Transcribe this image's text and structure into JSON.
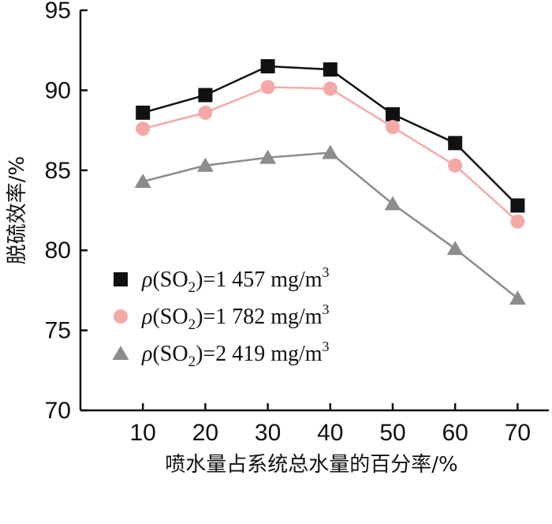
{
  "chart_data": {
    "type": "line",
    "xlabel": "喷水量占系统总水量的百分率/%",
    "ylabel": "脱硫效率/%",
    "x": [
      10,
      20,
      30,
      40,
      50,
      60,
      70
    ],
    "xlim": [
      0,
      75
    ],
    "ylim": [
      70,
      95
    ],
    "x_ticks": [
      "10",
      "20",
      "30",
      "40",
      "50",
      "60",
      "70"
    ],
    "y_ticks": [
      "70",
      "75",
      "80",
      "85",
      "90",
      "95"
    ],
    "grid": false,
    "legend_position": "left-center",
    "series": [
      {
        "name": "ρ(SO2)=1 457 mg/m3",
        "legend": {
          "symbol": "ρ",
          "paren_open": "(SO",
          "sub": "2",
          "paren_close": ")",
          "value": "=1 457 mg/m",
          "sup": "3"
        },
        "marker": "square",
        "color": "#111111",
        "line_color": "#111111",
        "values": [
          88.6,
          89.7,
          91.5,
          91.3,
          88.5,
          86.7,
          82.8
        ]
      },
      {
        "name": "ρ(SO2)=1 782 mg/m3",
        "legend": {
          "symbol": "ρ",
          "paren_open": "(SO",
          "sub": "2",
          "paren_close": ")",
          "value": "=1 782 mg/m",
          "sup": "3"
        },
        "marker": "circle",
        "color": "#f4a9a8",
        "line_color": "#f4a9a8",
        "values": [
          87.6,
          88.6,
          90.2,
          90.1,
          87.7,
          85.3,
          81.8
        ]
      },
      {
        "name": "ρ(SO2)=2 419 mg/m3",
        "legend": {
          "symbol": "ρ",
          "paren_open": "(SO",
          "sub": "2",
          "paren_close": ")",
          "value": "=2 419 mg/m",
          "sup": "3"
        },
        "marker": "triangle",
        "color": "#8c8c8c",
        "line_color": "#8c8c8c",
        "values": [
          84.3,
          85.3,
          85.8,
          86.1,
          82.9,
          80.1,
          77.0
        ]
      }
    ]
  }
}
